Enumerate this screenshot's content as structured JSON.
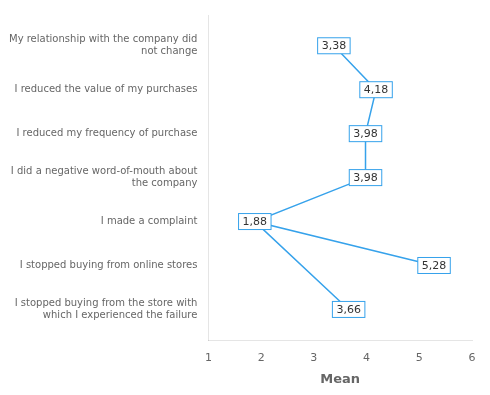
{
  "chart_data": {
    "type": "line",
    "orientation": "horizontal",
    "categories": [
      "My relationship with the company did\nnot change",
      "I reduced the value of my purchases",
      "I reduced my frequency of purchase",
      "I did a negative word-of-mouth about\nthe company",
      "I made a complaint",
      "I stopped buying from online stores",
      "I stopped buying from the store with\nwhich I experienced the failure"
    ],
    "values": [
      3.38,
      4.18,
      3.98,
      3.98,
      1.88,
      5.28,
      3.66
    ],
    "value_labels": [
      "3,38",
      "4,18",
      "3,98",
      "3,98",
      "1,88",
      "5,28",
      "3,66"
    ],
    "data_labels": true,
    "xlabel": "Mean",
    "xlim": [
      1,
      6
    ],
    "xticks": [
      1,
      2,
      3,
      4,
      5,
      6
    ],
    "grid": false
  }
}
